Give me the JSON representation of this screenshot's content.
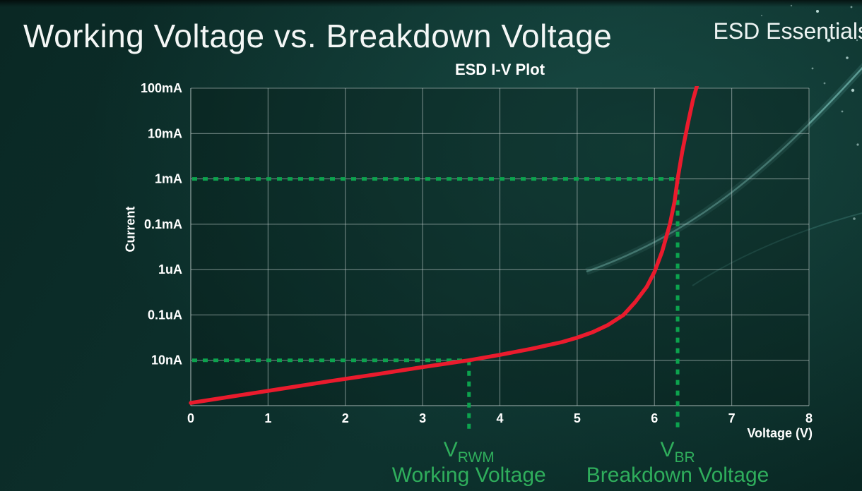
{
  "page": {
    "title": "Working Voltage vs. Breakdown Voltage",
    "brand": "ESD Essentials"
  },
  "colors": {
    "background": "#0a2b28",
    "text": "#ffffff",
    "grid": "rgba(198,210,208,0.55)",
    "curve_red": "#ea1b2d",
    "marker_green": "#0ca34e",
    "label_green": "#2fae5c"
  },
  "chart_data": {
    "type": "line",
    "title": "ESD I-V Plot",
    "xlabel": "Voltage (V)",
    "ylabel": "Current",
    "x_ticks": [
      0,
      1,
      2,
      3,
      4,
      5,
      6,
      7,
      8
    ],
    "xlim": [
      0,
      8
    ],
    "y_scale": "log-decades",
    "y_ticks": [
      "100mA",
      "10mA",
      "1mA",
      "0.1mA",
      "1uA",
      "0.1uA",
      "10nA"
    ],
    "grid": true,
    "legend": false,
    "series": [
      {
        "name": "iv_curve",
        "color": "#ea1b2d",
        "points_format": "[voltage_V, decades_above_bottom_axis]",
        "points": [
          [
            0,
            0.06
          ],
          [
            0.6,
            0.22
          ],
          [
            1.2,
            0.38
          ],
          [
            1.8,
            0.54
          ],
          [
            2.4,
            0.69
          ],
          [
            3.0,
            0.85
          ],
          [
            3.6,
            1.0
          ],
          [
            4.0,
            1.12
          ],
          [
            4.4,
            1.25
          ],
          [
            4.8,
            1.4
          ],
          [
            5.0,
            1.5
          ],
          [
            5.2,
            1.62
          ],
          [
            5.4,
            1.78
          ],
          [
            5.6,
            2.0
          ],
          [
            5.75,
            2.28
          ],
          [
            5.9,
            2.62
          ],
          [
            6.0,
            2.95
          ],
          [
            6.1,
            3.4
          ],
          [
            6.2,
            4.0
          ],
          [
            6.26,
            4.5
          ],
          [
            6.3,
            5.0
          ],
          [
            6.36,
            5.6
          ],
          [
            6.43,
            6.2
          ],
          [
            6.5,
            6.75
          ],
          [
            6.55,
            7.05
          ]
        ]
      }
    ],
    "markers": [
      {
        "name": "vrwm",
        "base": "V",
        "sub": "RWM",
        "caption": "Working Voltage",
        "voltage": 3.6,
        "current": "10nA",
        "y_index": 1
      },
      {
        "name": "vbr",
        "base": "V",
        "sub": "BR",
        "caption": "Breakdown Voltage",
        "voltage": 6.3,
        "current": "1mA",
        "y_index": 5
      }
    ]
  }
}
